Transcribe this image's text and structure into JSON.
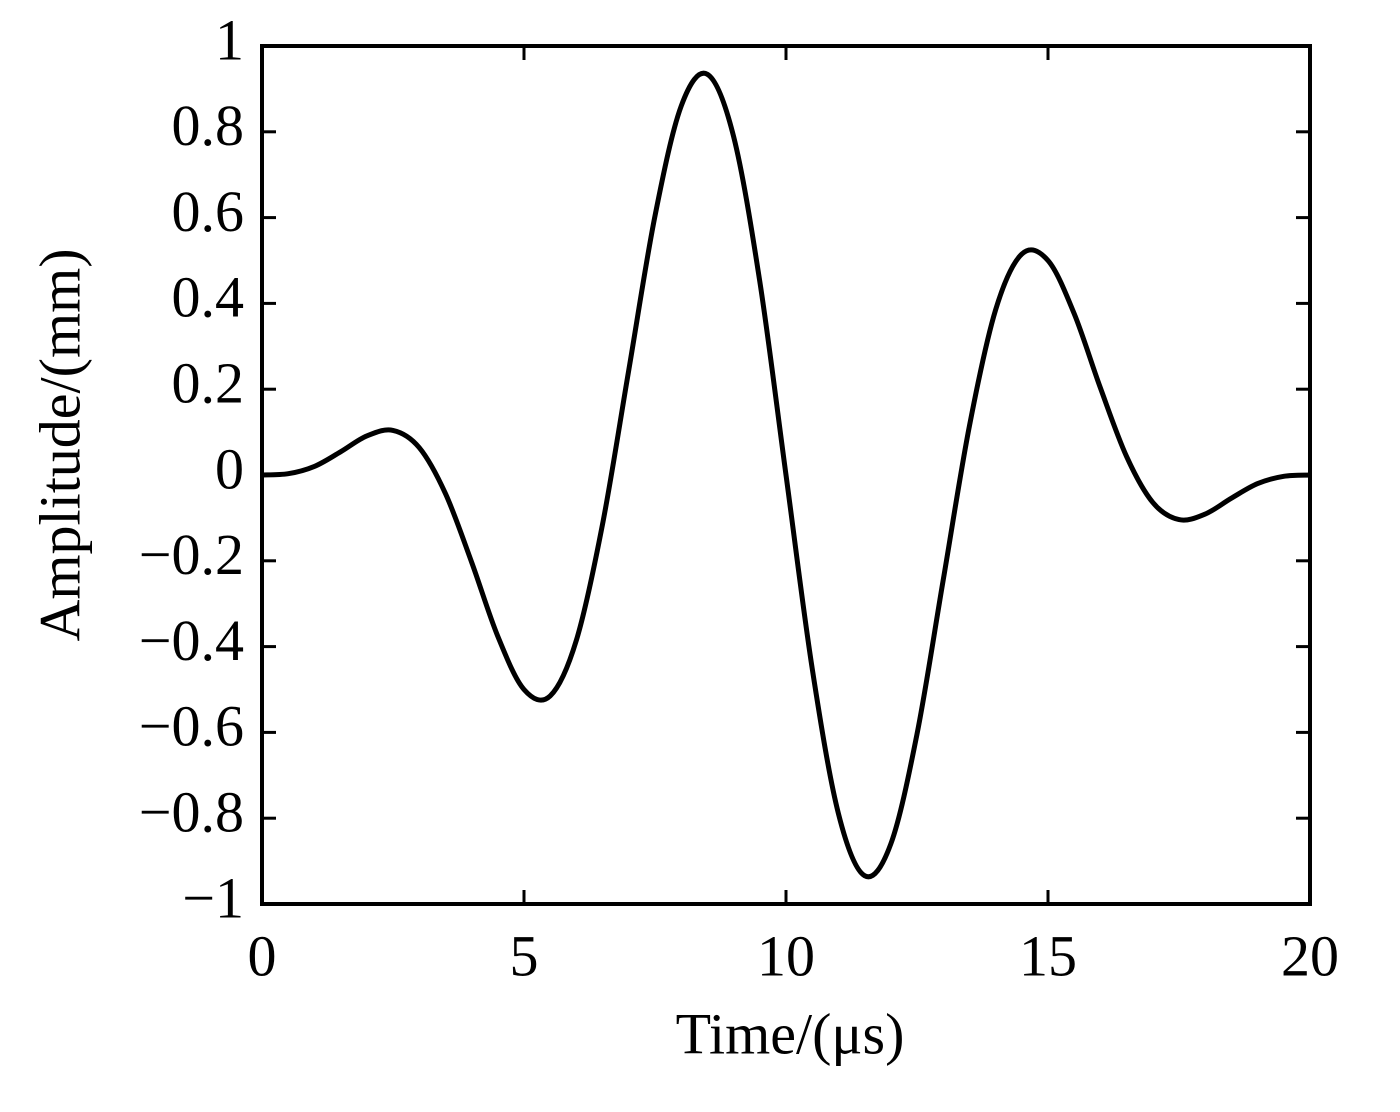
{
  "chart_data": {
    "type": "line",
    "x_label": "Time/(μs)",
    "y_label": "Amplitude/(mm)",
    "x": [
      0,
      0.5,
      1,
      1.5,
      2,
      2.5,
      3,
      3.5,
      4,
      4.5,
      5,
      5.5,
      6,
      6.5,
      7,
      7.5,
      8,
      8.5,
      9,
      9.5,
      10,
      10.5,
      11,
      11.5,
      12,
      12.5,
      13,
      13.5,
      14,
      14.5,
      15,
      15.5,
      16,
      16.5,
      17,
      17.5,
      18,
      18.5,
      19,
      19.5,
      20
    ],
    "series": [
      {
        "color": "#000000",
        "values": [
          0,
          0.003,
          0.02,
          0.054,
          0.091,
          0.104,
          0.064,
          -0.043,
          -0.203,
          -0.376,
          -0.5,
          -0.515,
          -0.385,
          -0.114,
          0.245,
          0.604,
          0.86,
          0.934,
          0.789,
          0.451,
          0,
          -0.451,
          -0.789,
          -0.934,
          -0.86,
          -0.604,
          -0.245,
          0.114,
          0.385,
          0.515,
          0.5,
          0.376,
          0.203,
          0.043,
          -0.064,
          -0.104,
          -0.091,
          -0.054,
          -0.02,
          -0.003,
          0
        ]
      }
    ],
    "xlim": [
      0,
      20
    ],
    "ylim": [
      -1,
      1
    ],
    "xticks": [
      0,
      5,
      10,
      15,
      20
    ],
    "yticks": [
      {
        "value": -1,
        "label": "−1"
      },
      {
        "value": -0.8,
        "label": "−0.8"
      },
      {
        "value": -0.6,
        "label": "−0.6"
      },
      {
        "value": -0.4,
        "label": "−0.4"
      },
      {
        "value": -0.2,
        "label": "−0.2"
      },
      0,
      0.2,
      0.4,
      0.6,
      0.8,
      1
    ],
    "grid": false
  }
}
